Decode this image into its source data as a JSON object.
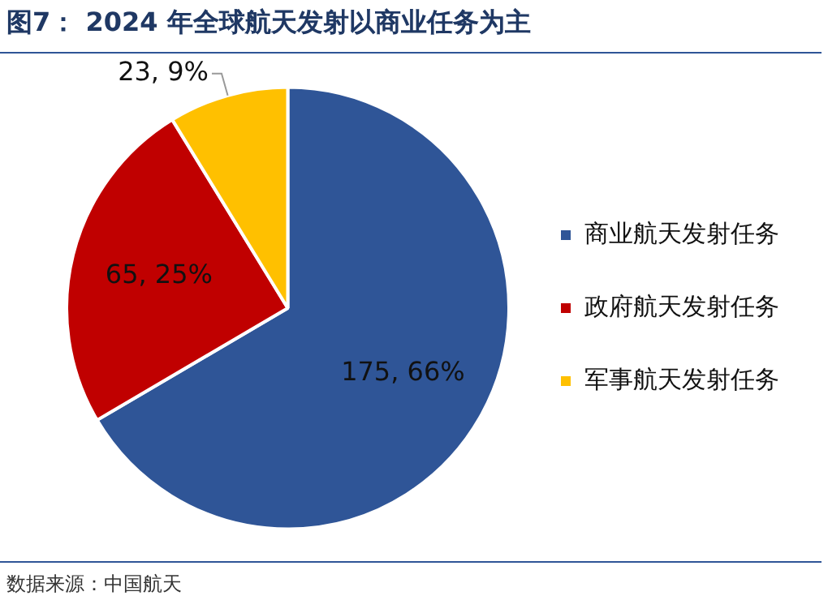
{
  "chart_data": {
    "type": "pie",
    "title": "图7： 2024 年全球航天发射以商业任务为主",
    "categories": [
      "商业航天发射任务",
      "政府航天发射任务",
      "军事航天发射任务"
    ],
    "values": [
      175,
      65,
      23
    ],
    "colors": [
      "#2f5597",
      "#c00000",
      "#ffc000"
    ],
    "value_labels": [
      "175, 66%",
      "65, 25%",
      "23, 9%"
    ],
    "legend": "right",
    "annotations": [
      "数据来源：中国航天"
    ]
  }
}
